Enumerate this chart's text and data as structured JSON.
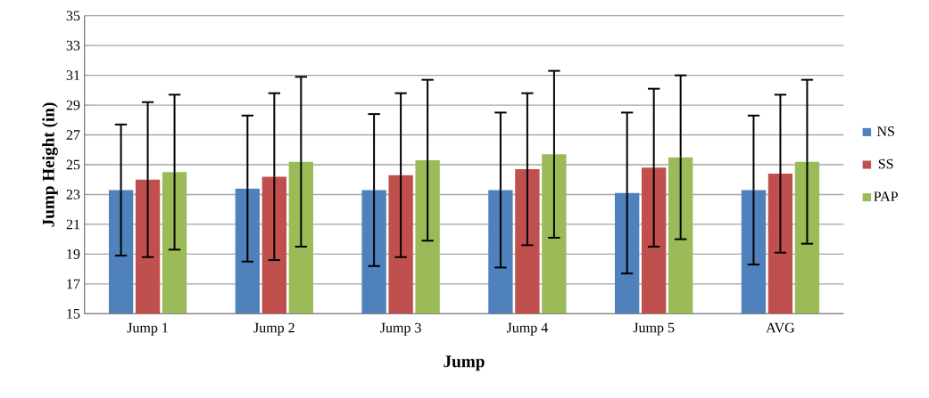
{
  "chart_data": {
    "type": "bar",
    "xlabel": "Jump",
    "ylabel": "Jump Height (in)",
    "categories": [
      "Jump 1",
      "Jump 2",
      "Jump 3",
      "Jump 4",
      "Jump 5",
      "AVG"
    ],
    "series": [
      {
        "name": "NS",
        "color": "#4f81bd",
        "values": [
          23.3,
          23.4,
          23.3,
          23.3,
          23.1,
          23.3
        ],
        "errors": [
          4.4,
          4.9,
          5.1,
          5.2,
          5.4,
          5.0
        ]
      },
      {
        "name": "SS",
        "color": "#c0504d",
        "values": [
          24.0,
          24.2,
          24.3,
          24.7,
          24.8,
          24.4
        ],
        "errors": [
          5.2,
          5.6,
          5.5,
          5.1,
          5.3,
          5.3
        ]
      },
      {
        "name": "PAP",
        "color": "#9bbb59",
        "values": [
          24.5,
          25.2,
          25.3,
          25.7,
          25.5,
          25.2
        ],
        "errors": [
          5.2,
          5.7,
          5.4,
          5.6,
          5.5,
          5.5
        ]
      }
    ],
    "ylim": [
      15,
      35
    ],
    "yticks": [
      15,
      17,
      19,
      21,
      23,
      25,
      27,
      29,
      31,
      33,
      35
    ],
    "grid": "y",
    "legend": "right"
  }
}
